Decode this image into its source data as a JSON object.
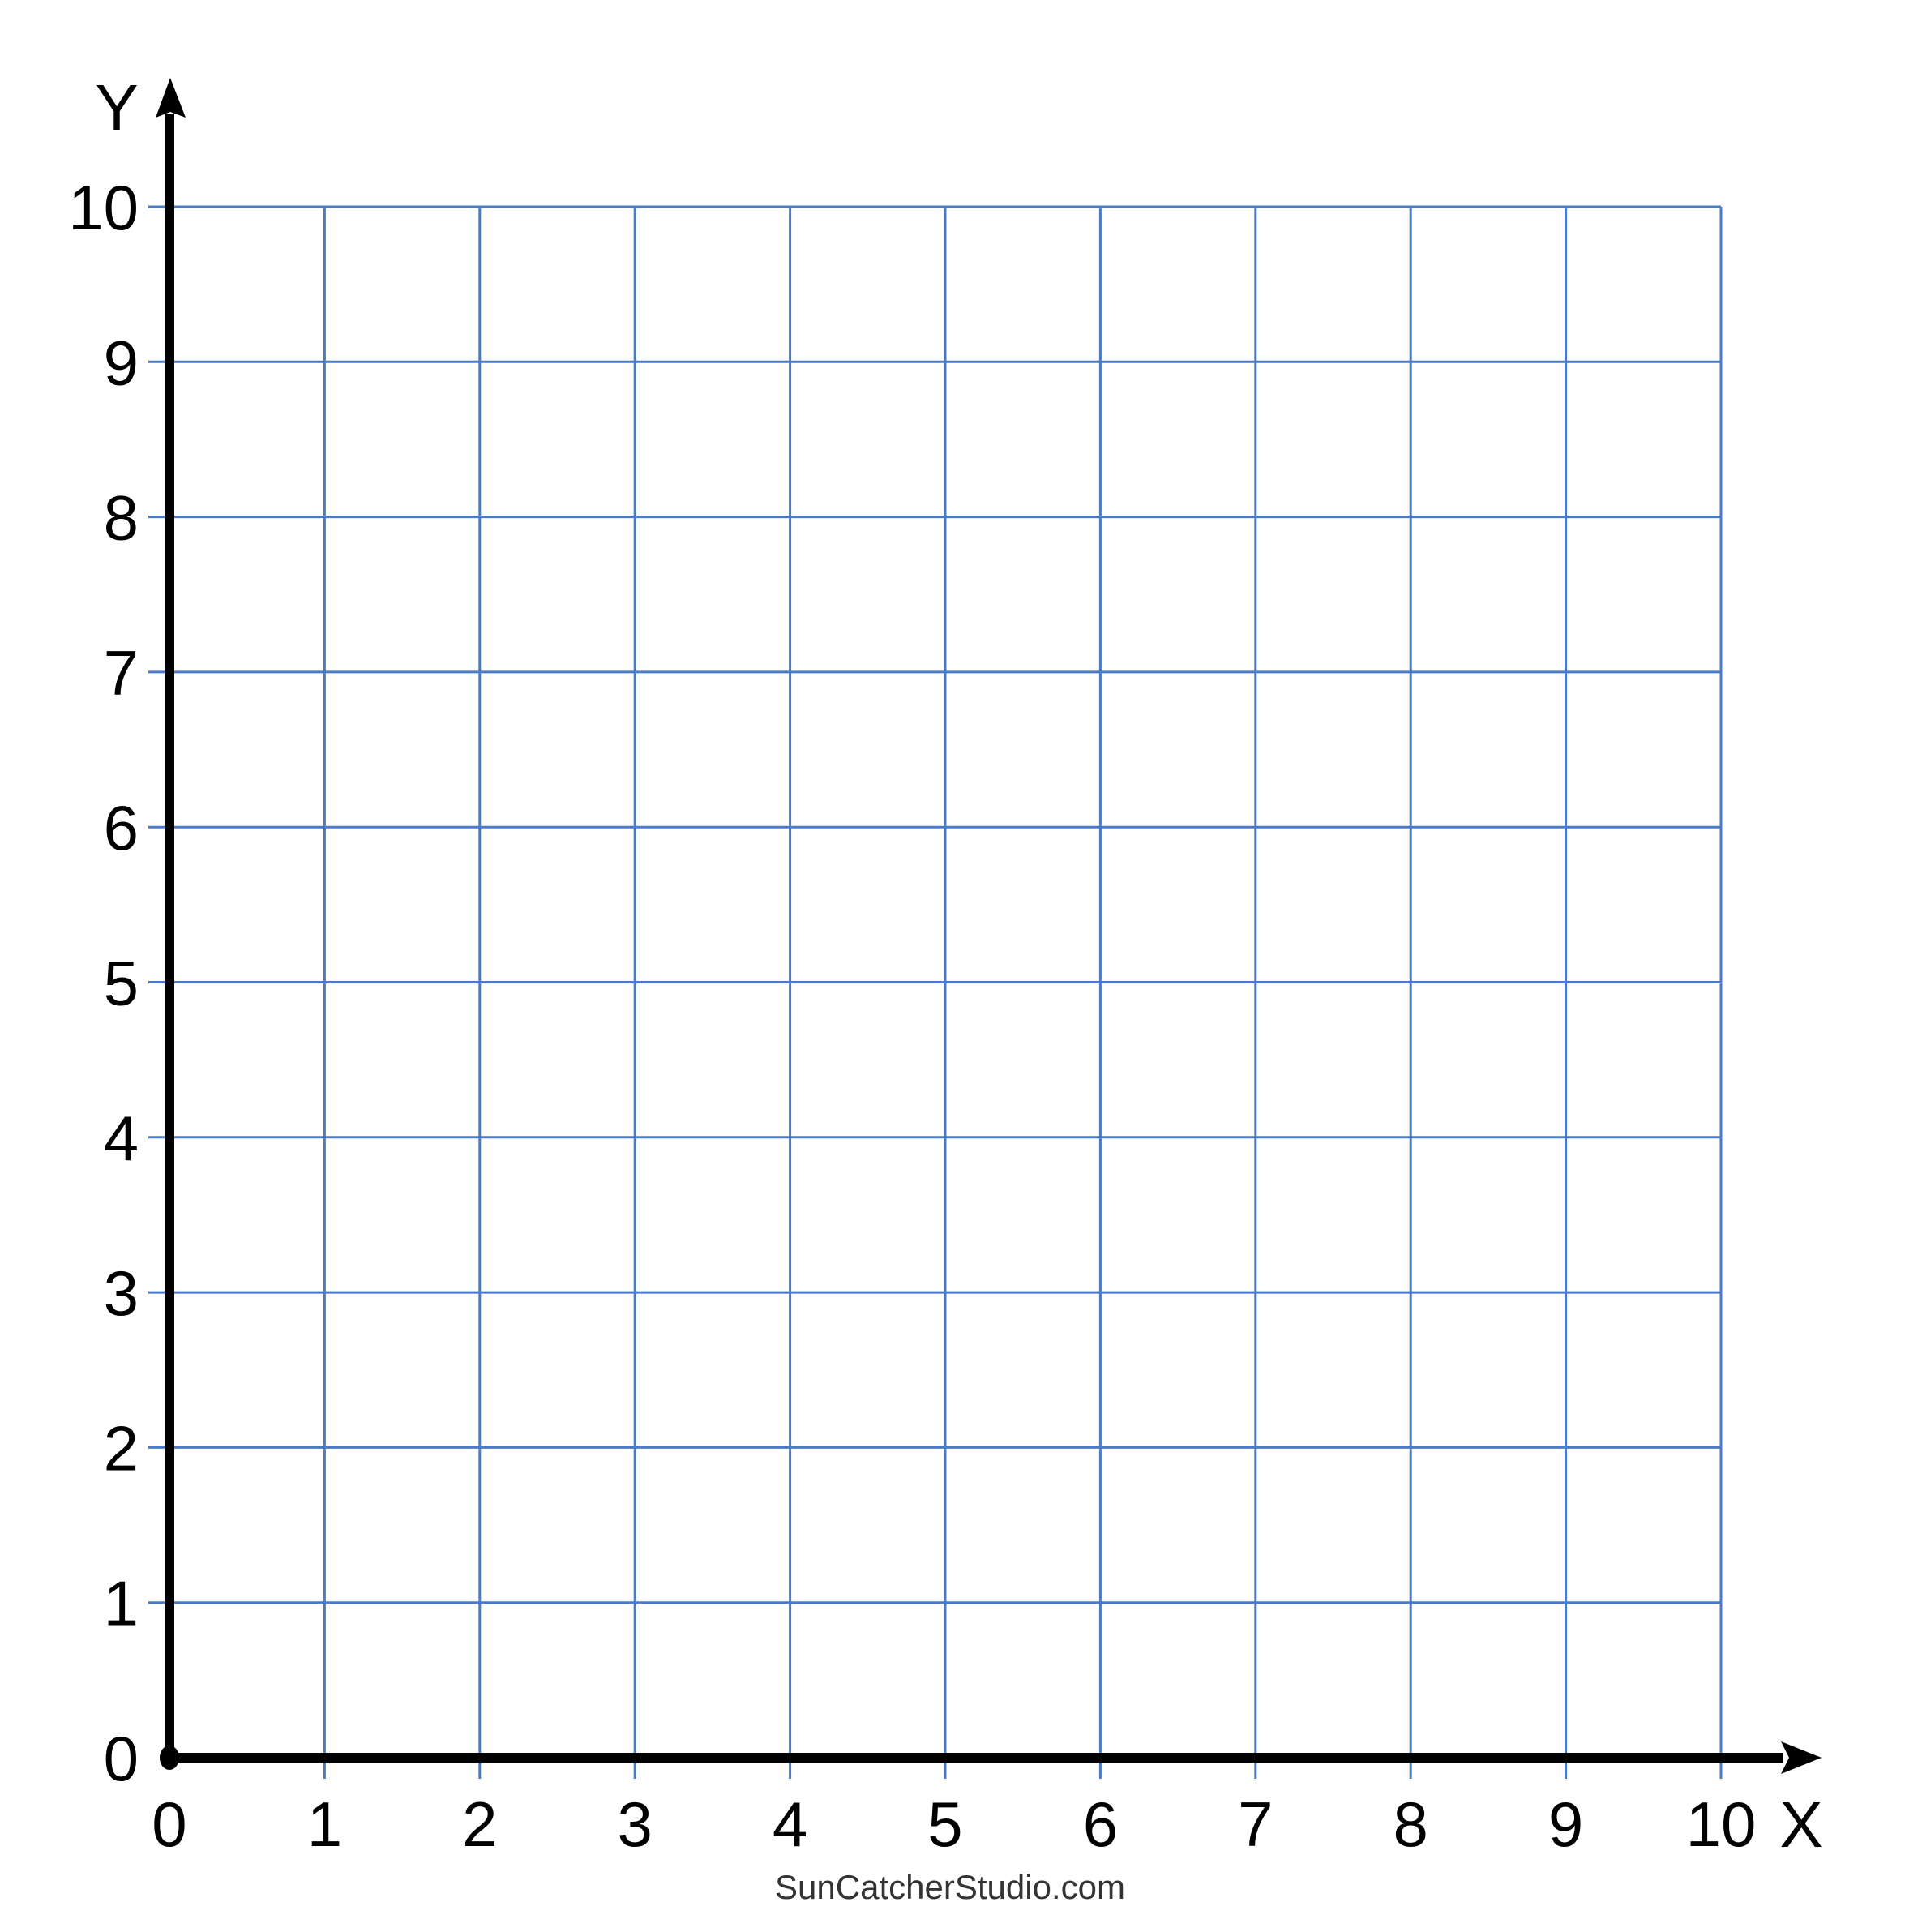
{
  "chart_data": {
    "type": "scatter",
    "title": "",
    "xlabel": "X",
    "ylabel": "Y",
    "xlim": [
      0,
      10
    ],
    "ylim": [
      0,
      10
    ],
    "x_ticks": [
      "0",
      "1",
      "2",
      "3",
      "4",
      "5",
      "6",
      "7",
      "8",
      "9",
      "10"
    ],
    "y_ticks": [
      "0",
      "1",
      "2",
      "3",
      "4",
      "5",
      "6",
      "7",
      "8",
      "9",
      "10"
    ],
    "grid": true,
    "points": [],
    "colors": {
      "grid": "#4a7bc8",
      "axis": "#000000"
    },
    "origin_marker": true
  },
  "footer": {
    "watermark": "SunCatcherStudio.com"
  }
}
